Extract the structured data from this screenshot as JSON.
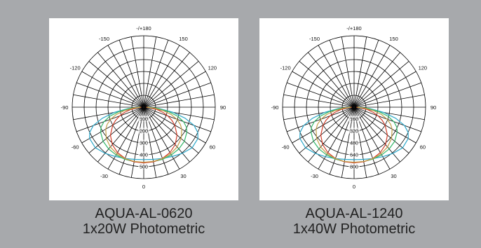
{
  "colors": {
    "background": "#a7a9ac",
    "panel": "#ffffff",
    "grid": "#000000",
    "series": [
      "#2aa6c9",
      "#33b86a",
      "#d23f2b",
      "#c3a04a"
    ]
  },
  "chart_data": [
    {
      "type": "polar",
      "angular_tick_labels": [
        "-/+180",
        "150",
        "120",
        "90",
        "60",
        "30",
        "0",
        "-30",
        "-60",
        "-90",
        "-120",
        "-150"
      ],
      "radial_tick_labels": [
        "100",
        "200",
        "300",
        "400",
        "500"
      ],
      "rmax": 600,
      "grid": true,
      "caption_line1": "AQUA-AL-0620",
      "caption_line2": "1x20W Photometric",
      "series": [
        {
          "color": "#2aa6c9",
          "angles": [
            0,
            10,
            20,
            30,
            40,
            50,
            60,
            65,
            70,
            75,
            80,
            85,
            90
          ],
          "values": [
            440,
            445,
            458,
            478,
            505,
            530,
            525,
            500,
            450,
            360,
            250,
            130,
            40
          ]
        },
        {
          "color": "#33b86a",
          "angles": [
            0,
            10,
            20,
            30,
            40,
            50,
            60,
            65,
            70,
            75,
            80,
            85,
            90
          ],
          "values": [
            465,
            465,
            465,
            463,
            458,
            445,
            418,
            395,
            355,
            295,
            210,
            110,
            30
          ]
        },
        {
          "color": "#d23f2b",
          "angles": [
            0,
            10,
            20,
            30,
            40,
            50,
            60,
            65,
            70,
            75,
            80,
            85,
            90
          ],
          "values": [
            468,
            466,
            458,
            440,
            410,
            365,
            300,
            260,
            215,
            165,
            110,
            55,
            20
          ]
        },
        {
          "color": "#c3a04a",
          "angles": [
            0,
            10,
            20,
            30,
            40,
            50,
            60,
            65,
            70,
            75,
            80,
            85,
            90
          ],
          "values": [
            462,
            462,
            460,
            452,
            436,
            410,
            368,
            338,
            295,
            238,
            165,
            85,
            25
          ]
        }
      ]
    },
    {
      "type": "polar",
      "angular_tick_labels": [
        "-/+180",
        "150",
        "120",
        "90",
        "60",
        "30",
        "0",
        "-30",
        "-60",
        "-90",
        "-120",
        "-150"
      ],
      "radial_tick_labels": [
        "160",
        "320",
        "480",
        "640",
        "800"
      ],
      "rmax": 960,
      "grid": true,
      "caption_line1": "AQUA-AL-1240",
      "caption_line2": "1x40W Photometric",
      "series": [
        {
          "color": "#2aa6c9",
          "angles": [
            0,
            10,
            20,
            30,
            40,
            50,
            60,
            65,
            70,
            75,
            80,
            85,
            90
          ],
          "values": [
            705,
            712,
            735,
            768,
            810,
            850,
            840,
            800,
            720,
            580,
            400,
            210,
            60
          ]
        },
        {
          "color": "#33b86a",
          "angles": [
            0,
            10,
            20,
            30,
            40,
            50,
            60,
            65,
            70,
            75,
            80,
            85,
            90
          ],
          "values": [
            742,
            742,
            742,
            740,
            733,
            712,
            668,
            632,
            568,
            472,
            336,
            176,
            48
          ]
        },
        {
          "color": "#d23f2b",
          "angles": [
            0,
            10,
            20,
            30,
            40,
            50,
            60,
            65,
            70,
            75,
            80,
            85,
            90
          ],
          "values": [
            748,
            745,
            733,
            704,
            656,
            584,
            480,
            416,
            344,
            264,
            176,
            88,
            30
          ]
        },
        {
          "color": "#c3a04a",
          "angles": [
            0,
            10,
            20,
            30,
            40,
            50,
            60,
            65,
            70,
            75,
            80,
            85,
            90
          ],
          "values": [
            740,
            740,
            736,
            723,
            698,
            656,
            589,
            541,
            472,
            381,
            264,
            136,
            40
          ]
        }
      ]
    }
  ]
}
